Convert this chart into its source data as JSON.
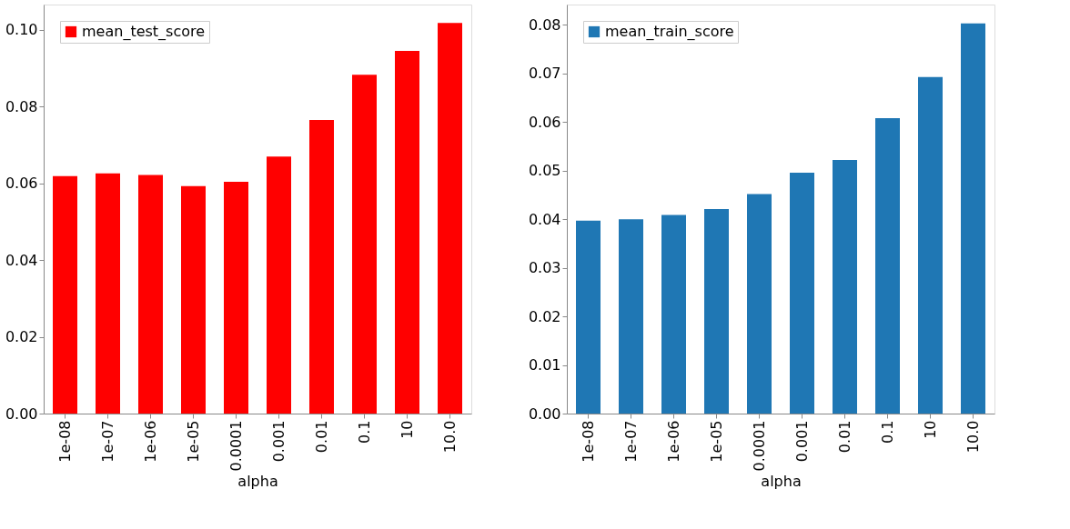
{
  "chart_data": [
    {
      "type": "bar",
      "xlabel": "alpha",
      "categories": [
        "1e-08",
        "1e-07",
        "1e-06",
        "1e-05",
        "0.0001",
        "0.001",
        "0.01",
        "0.1",
        "10",
        "10.0"
      ],
      "series": [
        {
          "name": "mean_test_score",
          "color": "#ff0000",
          "values": [
            0.0619,
            0.0626,
            0.0622,
            0.0593,
            0.0604,
            0.067,
            0.0765,
            0.0883,
            0.0945,
            0.1018
          ]
        }
      ],
      "ylim": [
        0,
        0.1066
      ],
      "yticks": [
        {
          "value": 0,
          "label": "0.00"
        },
        {
          "value": 0.02,
          "label": "0.02"
        },
        {
          "value": 0.04,
          "label": "0.04"
        },
        {
          "value": 0.06,
          "label": "0.06"
        },
        {
          "value": 0.08,
          "label": "0.08"
        },
        {
          "value": 0.1,
          "label": "0.10"
        }
      ],
      "legend": "top left",
      "grid": false
    },
    {
      "type": "bar",
      "xlabel": "alpha",
      "categories": [
        "1e-08",
        "1e-07",
        "1e-06",
        "1e-05",
        "0.0001",
        "0.001",
        "0.01",
        "0.1",
        "10",
        "10.0"
      ],
      "series": [
        {
          "name": "mean_train_score",
          "color": "#1f77b4",
          "values": [
            0.0397,
            0.04,
            0.0409,
            0.0421,
            0.0452,
            0.0496,
            0.0522,
            0.0608,
            0.0693,
            0.0803
          ]
        }
      ],
      "ylim": [
        0,
        0.0842
      ],
      "yticks": [
        {
          "value": 0,
          "label": "0.00"
        },
        {
          "value": 0.01,
          "label": "0.01"
        },
        {
          "value": 0.02,
          "label": "0.02"
        },
        {
          "value": 0.03,
          "label": "0.03"
        },
        {
          "value": 0.04,
          "label": "0.04"
        },
        {
          "value": 0.05,
          "label": "0.05"
        },
        {
          "value": 0.06,
          "label": "0.06"
        },
        {
          "value": 0.07,
          "label": "0.07"
        },
        {
          "value": 0.08,
          "label": "0.08"
        }
      ],
      "legend": "top left",
      "grid": false
    }
  ]
}
